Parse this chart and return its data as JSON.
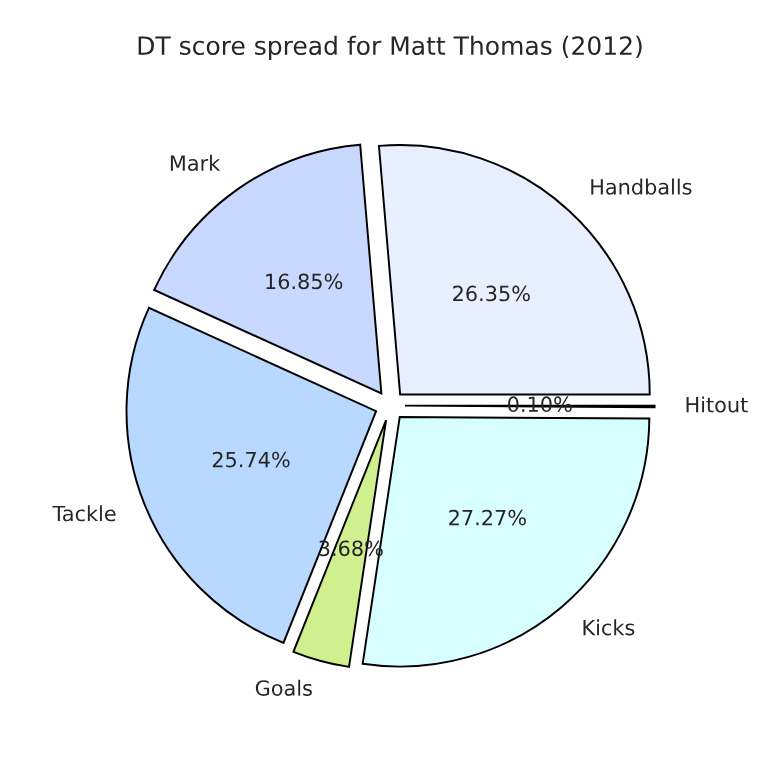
{
  "chart_data": {
    "type": "pie",
    "title": "DT score spread for Matt Thomas (2012)",
    "categories": [
      "Handballs",
      "Mark",
      "Tackle",
      "Goals",
      "Kicks",
      "Hitout"
    ],
    "values": [
      26.35,
      16.85,
      25.74,
      3.68,
      27.27,
      0.1
    ],
    "value_labels": [
      "26.35%",
      "16.85%",
      "25.74%",
      "3.68%",
      "27.27%",
      "0.10%"
    ],
    "colors": [
      "#e8f0ff",
      "#c8d8ff",
      "#b8d8ff",
      "#d0f090",
      "#d8ffff",
      "#f0f0ff"
    ]
  }
}
